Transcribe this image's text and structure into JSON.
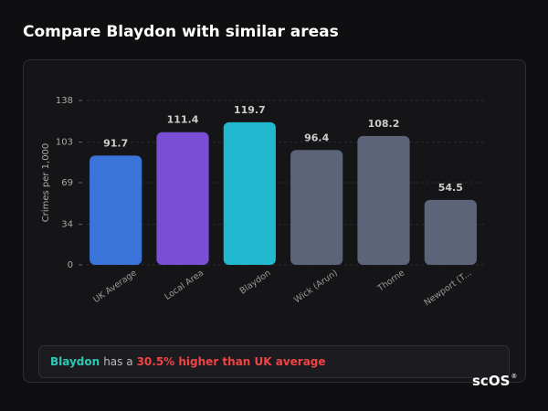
{
  "header": {
    "title": "Compare Blaydon with similar areas"
  },
  "chart_data": {
    "type": "bar",
    "y_label": "Crimes per 1,000",
    "categories": [
      "UK Average",
      "Local Area",
      "Blaydon",
      "Wick (Arun)",
      "Thorne",
      "Newport (T..."
    ],
    "values": [
      91.7,
      111.4,
      119.7,
      96.4,
      108.2,
      54.5
    ],
    "colors": [
      "#3b74d9",
      "#7a4fd6",
      "#22b8cf",
      "#5b6478",
      "#5b6478",
      "#5b6478"
    ],
    "ylim": [
      0,
      138
    ],
    "yticks": [
      0,
      34,
      69,
      103,
      138
    ],
    "grid": true
  },
  "note": {
    "place": "Blaydon",
    "middle": "has a",
    "highlight": "30.5% higher than UK average"
  },
  "logo": {
    "text": "scOS",
    "mark": "®"
  }
}
